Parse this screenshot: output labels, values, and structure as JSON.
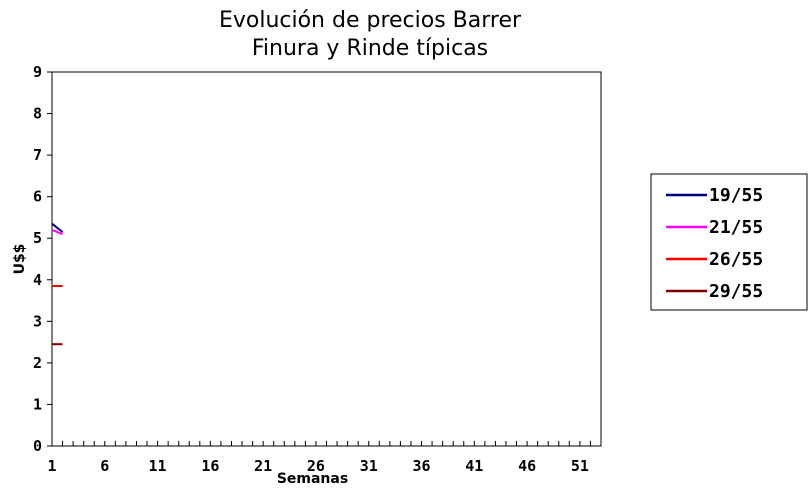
{
  "chart_data": {
    "type": "line",
    "title": "Evolución de precios Barrer",
    "subtitle": "Finura y Rinde típicas",
    "xlabel": "Semanas",
    "ylabel": "U$$",
    "ylim": [
      0,
      9
    ],
    "yticks": [
      "0",
      "1",
      "2",
      "3",
      "4",
      "5",
      "6",
      "7",
      "8",
      "9"
    ],
    "xlim": [
      1,
      53
    ],
    "xticks": [
      "1",
      "6",
      "11",
      "16",
      "21",
      "26",
      "31",
      "36",
      "41",
      "46",
      "51"
    ],
    "grid": false,
    "legend_position": "right",
    "series": [
      {
        "name": "19/55",
        "color": "#000080",
        "x": [
          1,
          2
        ],
        "values": [
          5.35,
          5.15
        ]
      },
      {
        "name": "21/55",
        "color": "#ff00ff",
        "x": [
          1,
          2
        ],
        "values": [
          5.2,
          5.1
        ]
      },
      {
        "name": "26/55",
        "color": "#ff0000",
        "x": [
          1,
          2
        ],
        "values": [
          3.85,
          3.85
        ]
      },
      {
        "name": "29/55",
        "color": "#800000",
        "x": [
          1,
          2
        ],
        "values": [
          2.45,
          2.45
        ]
      }
    ]
  }
}
